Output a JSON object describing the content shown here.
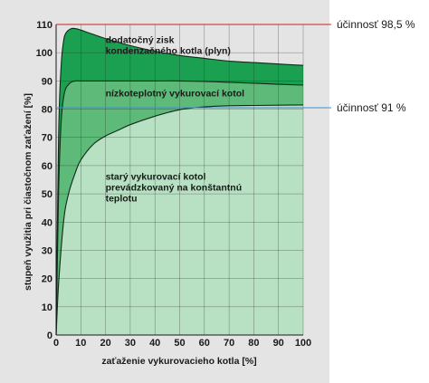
{
  "chart_data": {
    "type": "area",
    "xlabel": "zaťaženie vykurovacieho kotla [%]",
    "ylabel": "stupeň využitia pri čiastočnom zaťažení [%]",
    "xlim": [
      0,
      100
    ],
    "ylim": [
      0,
      110
    ],
    "x_ticks": [
      "0",
      "10",
      "20",
      "30",
      "40",
      "50",
      "60",
      "70",
      "80",
      "90",
      "100"
    ],
    "y_ticks": [
      "0",
      "10",
      "20",
      "30",
      "40",
      "50",
      "60",
      "70",
      "80",
      "90",
      "100",
      "110"
    ],
    "grid": true,
    "series": [
      {
        "name": "dodatočný zisk kondenzačného kotla (plyn)",
        "color": "#1aa050",
        "x": [
          0,
          1,
          2,
          3,
          4,
          6,
          8,
          10,
          15,
          20,
          30,
          40,
          50,
          60,
          70,
          80,
          90,
          100
        ],
        "values": [
          0,
          70,
          95,
          104,
          107,
          108.5,
          108.5,
          108,
          106.5,
          105,
          102.5,
          100.5,
          99,
          98,
          97,
          96.5,
          96,
          95.5
        ]
      },
      {
        "name": "nízkoteplotný vykurovací kotol",
        "color": "#5dba79",
        "x": [
          0,
          1,
          2,
          3,
          4,
          6,
          8,
          10,
          15,
          20,
          30,
          40,
          50,
          60,
          70,
          80,
          90,
          100
        ],
        "values": [
          0,
          50,
          75,
          84,
          87.5,
          89.5,
          90,
          90,
          90,
          90,
          90,
          90,
          90,
          89.8,
          89.5,
          89.2,
          88.8,
          88.5
        ]
      },
      {
        "name": "starý vykurovací kotol prevádzkovaný na konštantnú teplotu",
        "color": "#b8e0c3",
        "x": [
          0,
          1,
          3,
          5,
          8,
          10,
          15,
          20,
          25,
          30,
          40,
          50,
          60,
          70,
          80,
          90,
          100
        ],
        "values": [
          0,
          18,
          40,
          50,
          58,
          62,
          67.5,
          70.5,
          72.5,
          74.5,
          77.5,
          79.8,
          80.8,
          81.2,
          81.3,
          81.4,
          81.5
        ]
      }
    ],
    "region_labels": [
      {
        "lines": [
          "dodatočný zisk",
          "kondenzačného kotla (plyn)"
        ],
        "x": 20,
        "y": 103.5
      },
      {
        "lines": [
          "nízkoteplotný vykurovací kotol"
        ],
        "x": 20,
        "y": 84.5
      },
      {
        "lines": [
          "starý vykurovací kotol",
          "prevádzkovaný na konštantnú",
          "teplotu"
        ],
        "x": 20,
        "y": 55
      }
    ],
    "annotations": [
      {
        "text": "účinnosť 98,5 %",
        "y": 110,
        "line_color": "#cc2020"
      },
      {
        "text": "účinnosť 91 %",
        "y": 80.5,
        "line_color": "#3a8fd0"
      }
    ]
  }
}
